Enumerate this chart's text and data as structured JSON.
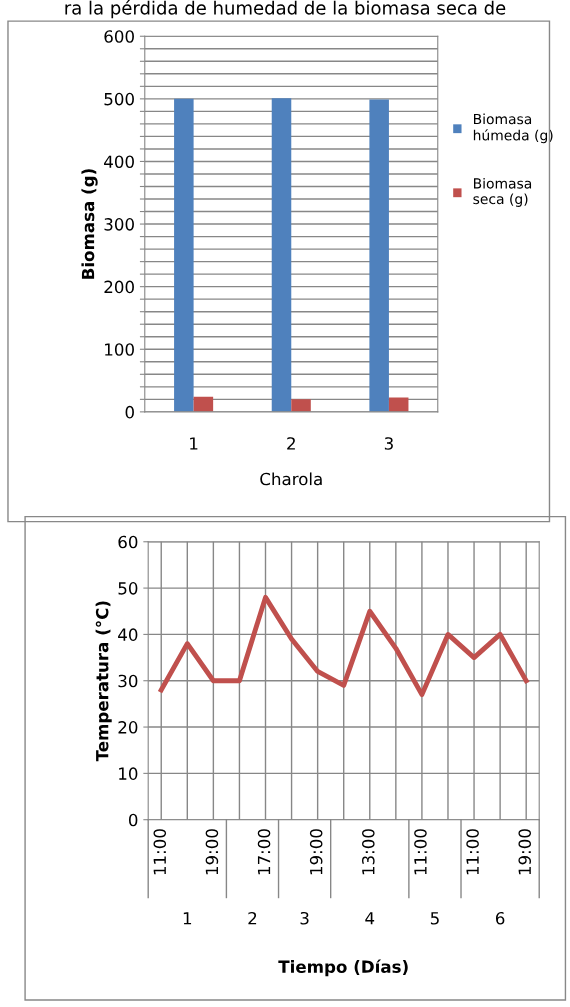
{
  "chart_data": [
    {
      "type": "bar",
      "annotations": [
        "ra la pérdida de humedad de la biomasa seca de"
      ],
      "xlabel": "Charola",
      "ylabel": "Biomasa (g)",
      "categories": [
        "1",
        "2",
        "3"
      ],
      "series": [
        {
          "name": "Biomasa húmeda (g)",
          "color": "#4f81bd",
          "values": [
            500,
            501,
            499
          ]
        },
        {
          "name": "Biomasa seca (g)",
          "color": "#c0504d",
          "values": [
            24,
            20,
            23
          ]
        }
      ],
      "ylim": [
        0,
        600
      ],
      "yticks": [
        0,
        {
          "value": 20,
          "label": null
        },
        {
          "value": 40,
          "label": null
        },
        {
          "value": 60,
          "label": null
        },
        {
          "value": 80,
          "label": null
        },
        100,
        {
          "value": 120,
          "label": null
        },
        {
          "value": 140,
          "label": null
        },
        {
          "value": 160,
          "label": null
        },
        {
          "value": 180,
          "label": null
        },
        200,
        {
          "value": 220,
          "label": null
        },
        {
          "value": 240,
          "label": null
        },
        {
          "value": 260,
          "label": null
        },
        {
          "value": 280,
          "label": null
        },
        300,
        {
          "value": 320,
          "label": null
        },
        {
          "value": 340,
          "label": null
        },
        {
          "value": 360,
          "label": null
        },
        {
          "value": 380,
          "label": null
        },
        400,
        {
          "value": 420,
          "label": null
        },
        {
          "value": 440,
          "label": null
        },
        {
          "value": 460,
          "label": null
        },
        {
          "value": 480,
          "label": null
        },
        500,
        {
          "value": 520,
          "label": null
        },
        {
          "value": 540,
          "label": null
        },
        {
          "value": 560,
          "label": null
        },
        {
          "value": 580,
          "label": null
        },
        600
      ],
      "grid": "y",
      "legend": "right"
    },
    {
      "type": "line",
      "xlabel": "Tiempo (Días)",
      "ylabel": "Temperatura (°C)",
      "categories": [
        "11:00",
        null,
        "19:00",
        null,
        "17:00",
        null,
        "19:00",
        null,
        "13:00",
        null,
        "11:00",
        null,
        "11:00",
        null,
        "19:00"
      ],
      "series": [
        {
          "color": "#c0504d",
          "values": [
            28,
            38,
            30,
            30,
            48,
            39,
            32,
            29,
            45,
            37,
            27,
            40,
            35,
            40,
            30
          ]
        }
      ],
      "ylim": [
        0,
        60
      ],
      "yticks": [
        0,
        10,
        20,
        30,
        40,
        50,
        60
      ],
      "annotations": [
        "1",
        "2",
        "3",
        "4",
        "5",
        "6"
      ],
      "grid": true,
      "marker": "none",
      "line_style": "solid",
      "legend": false
    }
  ]
}
